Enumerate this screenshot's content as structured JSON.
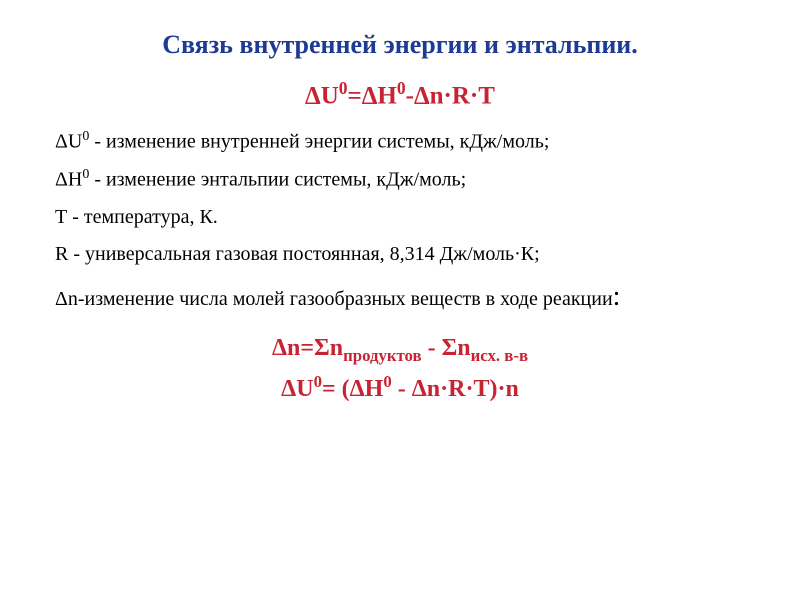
{
  "title": "Связь внутренней энергии и энтальпии.",
  "mainFormula": "ΔU⁰=ΔH⁰-Δn·R·T",
  "definitions": {
    "deltaU": "ΔU⁰ - изменение внутренней энергии системы, кДж/моль;",
    "deltaH": "ΔH⁰ - изменение энтальпии системы, кДж/моль;",
    "temperature": "Т - температура, К.",
    "gasConstant": "R - универсальная газовая постоянная, 8,314 Дж/моль·К;",
    "deltaN": "Δn-изменение числа молей газообразных веществ в ходе реакции"
  },
  "resultFormulas": {
    "deltaNFormula": "Δn=Σnпродуктов - Σnисх. в-в",
    "deltaUFormula": "ΔU⁰= (ΔH⁰ - Δn·R·T)·n"
  },
  "colors": {
    "titleColor": "#1f3a93",
    "formulaColor": "#c82333",
    "textColor": "#000000",
    "background": "#ffffff"
  },
  "fontSizes": {
    "title": 26,
    "mainFormula": 25,
    "definition": 20,
    "resultFormula": 24
  }
}
